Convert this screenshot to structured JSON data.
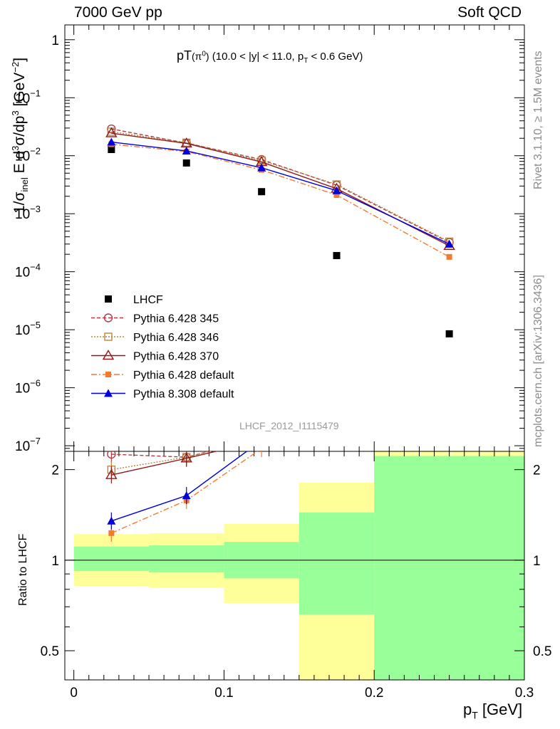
{
  "header": {
    "left": "7000 GeV pp",
    "right": "Soft QCD"
  },
  "side_labels": {
    "rivet": "Rivet 3.1.10, ≥ 1.5M events",
    "mcplots": "mcplots.cern.ch [arXiv:1306.3436]"
  },
  "watermark": "LHCF_2012_I1115479",
  "colors": {
    "lhcf": "#000000",
    "p345": "#b03a48",
    "p346": "#b8863b",
    "p370": "#8b1a1a",
    "p6def": "#f47a30",
    "p8def": "#0000dd",
    "band_inner": "#99ff99",
    "band_outer": "#ffff99"
  },
  "chart_data": [
    {
      "type": "scatter",
      "title": "pT(π⁰) (10.0 < |y| < 11.0, p_T < 0.6 GeV)",
      "ylabel": "1/σ_inel E d³σ/dp³ [GeV⁻²]",
      "yscale": "log",
      "ylim": [
        8e-08,
        1.8
      ],
      "xlim": [
        -0.006,
        0.3
      ],
      "y_ticks": [
        {
          "v": 1,
          "label": "1"
        },
        {
          "v": 0.1,
          "label": "10",
          "exp": "−1"
        },
        {
          "v": 0.01,
          "label": "10",
          "exp": "−2"
        },
        {
          "v": 0.001,
          "label": "10",
          "exp": "−3"
        },
        {
          "v": 0.0001,
          "label": "10",
          "exp": "−4"
        },
        {
          "v": 1e-05,
          "label": "10",
          "exp": "−5"
        },
        {
          "v": 1e-06,
          "label": "10",
          "exp": "−6"
        },
        {
          "v": 1e-07,
          "label": "10",
          "exp": "−7"
        }
      ],
      "x": [
        0.025,
        0.075,
        0.125,
        0.175,
        0.25
      ],
      "series": [
        {
          "name": "LHCF",
          "key": "lhcf",
          "values": [
            0.0128,
            0.0075,
            0.0024,
            0.00019,
            8.5e-06
          ]
        },
        {
          "name": "Pythia 6.428 345",
          "key": "p345",
          "values": [
            0.029,
            0.0165,
            0.0086,
            0.0031,
            0.00032
          ]
        },
        {
          "name": "Pythia 6.428 346",
          "key": "p346",
          "values": [
            0.026,
            0.0168,
            0.0082,
            0.0032,
            0.00033
          ]
        },
        {
          "name": "Pythia 6.428 370",
          "key": "p370",
          "values": [
            0.0245,
            0.0163,
            0.0078,
            0.0027,
            0.00028
          ]
        },
        {
          "name": "Pythia 6.428 default",
          "key": "p6def",
          "values": [
            0.0158,
            0.0118,
            0.0057,
            0.0021,
            0.00018
          ]
        },
        {
          "name": "Pythia 8.308 default",
          "key": "p8def",
          "values": [
            0.0172,
            0.0121,
            0.0062,
            0.0025,
            0.0003
          ]
        }
      ]
    },
    {
      "type": "line",
      "ylabel": "Ratio to LHCF",
      "xlabel": "p_T [GeV]",
      "yscale": "log",
      "ylim": [
        0.4,
        2.3
      ],
      "xlim": [
        -0.006,
        0.3
      ],
      "y_ticks": [
        0.5,
        1,
        2
      ],
      "x_ticks": [
        0,
        0.1,
        0.2,
        0.3
      ],
      "bands": [
        {
          "x0": 0.0,
          "x1": 0.05,
          "inner": [
            0.92,
            1.11
          ],
          "outer": [
            0.82,
            1.22
          ]
        },
        {
          "x0": 0.05,
          "x1": 0.1,
          "inner": [
            0.91,
            1.12
          ],
          "outer": [
            0.81,
            1.23
          ]
        },
        {
          "x0": 0.1,
          "x1": 0.15,
          "inner": [
            0.87,
            1.15
          ],
          "outer": [
            0.72,
            1.32
          ]
        },
        {
          "x0": 0.15,
          "x1": 0.2,
          "inner": [
            0.66,
            1.44
          ],
          "outer": [
            0.35,
            1.81
          ]
        },
        {
          "x0": 0.2,
          "x1": 0.3,
          "inner": [
            0.35,
            2.22
          ],
          "outer": [
            0.35,
            2.5
          ]
        }
      ],
      "series": [
        {
          "name": "Pythia 6.428 345",
          "key": "p345",
          "x": [
            0.025,
            0.075,
            0.125
          ],
          "values": [
            2.25,
            2.2,
            2.55
          ]
        },
        {
          "name": "Pythia 6.428 346",
          "key": "p346",
          "x": [
            0.025,
            0.075,
            0.125
          ],
          "values": [
            2.0,
            2.2,
            2.55
          ]
        },
        {
          "name": "Pythia 6.428 370",
          "key": "p370",
          "x": [
            0.025,
            0.075,
            0.125
          ],
          "values": [
            1.92,
            2.18,
            2.5
          ]
        },
        {
          "name": "Pythia 6.428 default",
          "key": "p6def",
          "x": [
            0.025,
            0.075,
            0.125
          ],
          "values": [
            1.23,
            1.58,
            2.35
          ]
        },
        {
          "name": "Pythia 8.308 default",
          "key": "p8def",
          "x": [
            0.025,
            0.075,
            0.125
          ],
          "values": [
            1.35,
            1.64,
            2.5
          ]
        }
      ]
    }
  ]
}
